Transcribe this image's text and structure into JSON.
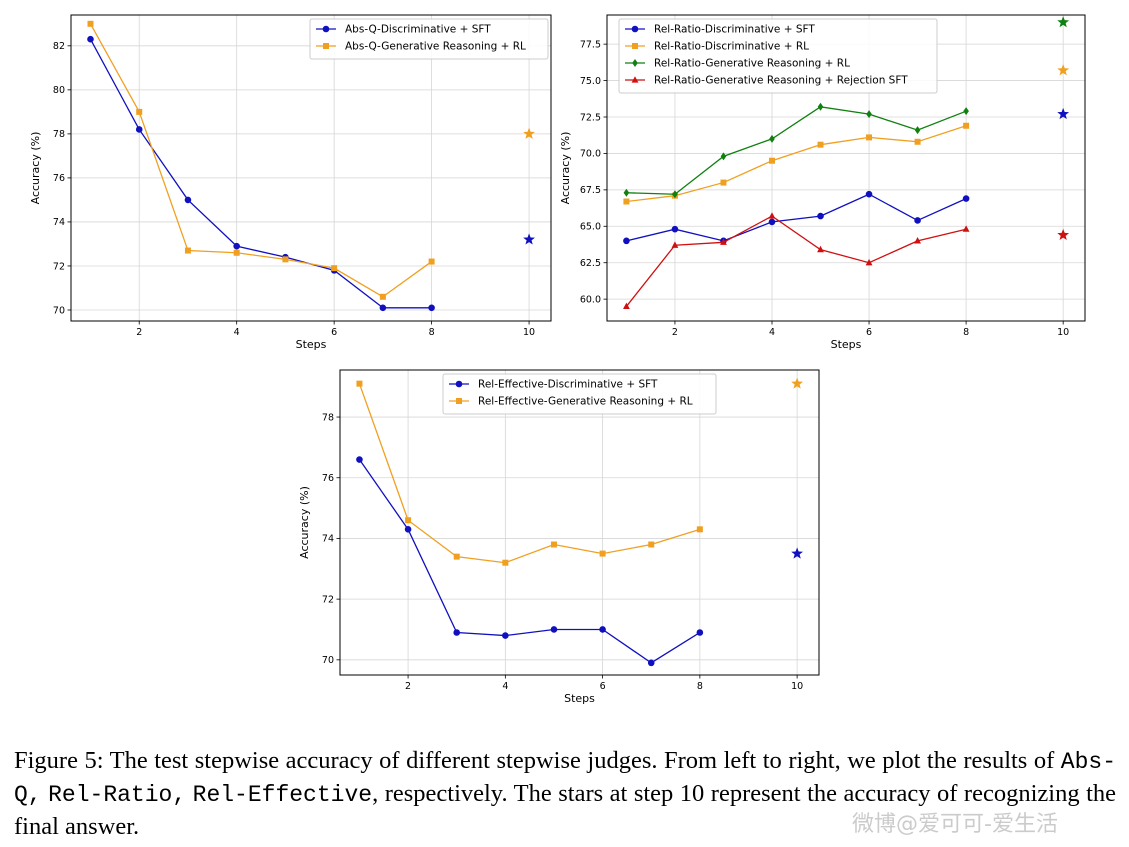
{
  "chart_data": [
    {
      "type": "line",
      "xlabel": "Steps",
      "ylabel": "Accuracy (%)",
      "xlim": [
        0.6,
        10.45
      ],
      "ylim": [
        69.5,
        83.4
      ],
      "xticks": [
        2,
        4,
        6,
        8,
        10
      ],
      "yticks": [
        70,
        72,
        74,
        76,
        78,
        80,
        82
      ],
      "grid": true,
      "legend": "top-right",
      "series": [
        {
          "name": "Abs-Q-Discriminative + SFT",
          "color": "#1010c0",
          "marker": "circle",
          "x": [
            1,
            2,
            3,
            4,
            5,
            6,
            7,
            8
          ],
          "y": [
            82.3,
            78.2,
            75.0,
            72.9,
            72.4,
            71.8,
            70.1,
            70.1
          ]
        },
        {
          "name": "Abs-Q-Generative Reasoning + RL",
          "color": "#f0a020",
          "marker": "square",
          "x": [
            1,
            2,
            3,
            4,
            5,
            6,
            7,
            8
          ],
          "y": [
            83.0,
            79.0,
            72.7,
            72.6,
            72.3,
            71.9,
            70.6,
            72.2
          ]
        }
      ],
      "stars": [
        {
          "x": 10,
          "y": 78.0,
          "color": "#f0a020"
        },
        {
          "x": 10,
          "y": 73.2,
          "color": "#1010c0"
        }
      ]
    },
    {
      "type": "line",
      "xlabel": "Steps",
      "ylabel": "Accuracy (%)",
      "xlim": [
        0.6,
        10.45
      ],
      "ylim": [
        58.5,
        79.5
      ],
      "xticks": [
        2,
        4,
        6,
        8,
        10
      ],
      "yticks": [
        60.0,
        62.5,
        65.0,
        67.5,
        70.0,
        72.5,
        75.0,
        77.5
      ],
      "ytick_labels": [
        "60.0",
        "62.5",
        "65.0",
        "67.5",
        "70.0",
        "72.5",
        "75.0",
        "77.5"
      ],
      "grid": true,
      "legend": "top-left",
      "series": [
        {
          "name": "Rel-Ratio-Discriminative + SFT",
          "color": "#1010c0",
          "marker": "circle",
          "x": [
            1,
            2,
            3,
            4,
            5,
            6,
            7,
            8
          ],
          "y": [
            64.0,
            64.8,
            64.0,
            65.3,
            65.7,
            67.2,
            65.4,
            66.9
          ]
        },
        {
          "name": "Rel-Ratio-Discriminative + RL",
          "color": "#f0a020",
          "marker": "square",
          "x": [
            1,
            2,
            3,
            4,
            5,
            6,
            7,
            8
          ],
          "y": [
            66.7,
            67.1,
            68.0,
            69.5,
            70.6,
            71.1,
            70.8,
            71.9
          ]
        },
        {
          "name": "Rel-Ratio-Generative Reasoning + RL",
          "color": "#108010",
          "marker": "diamond",
          "x": [
            1,
            2,
            3,
            4,
            5,
            6,
            7,
            8
          ],
          "y": [
            67.3,
            67.2,
            69.8,
            71.0,
            73.2,
            72.7,
            71.6,
            72.9
          ]
        },
        {
          "name": "Rel-Ratio-Generative Reasoning + Rejection SFT",
          "color": "#d01010",
          "marker": "triangle",
          "x": [
            1,
            2,
            3,
            4,
            5,
            6,
            7,
            8
          ],
          "y": [
            59.5,
            63.7,
            63.9,
            65.7,
            63.4,
            62.5,
            64.0,
            64.8
          ]
        }
      ],
      "stars": [
        {
          "x": 10,
          "y": 79.0,
          "color": "#108010"
        },
        {
          "x": 10,
          "y": 75.7,
          "color": "#f0a020"
        },
        {
          "x": 10,
          "y": 72.7,
          "color": "#1010c0"
        },
        {
          "x": 10,
          "y": 64.4,
          "color": "#d01010"
        }
      ]
    },
    {
      "type": "line",
      "xlabel": "Steps",
      "ylabel": "Accuracy (%)",
      "xlim": [
        0.6,
        10.45
      ],
      "ylim": [
        69.5,
        79.55
      ],
      "xticks": [
        2,
        4,
        6,
        8,
        10
      ],
      "yticks": [
        70,
        72,
        74,
        76,
        78
      ],
      "grid": true,
      "legend": "top-center",
      "series": [
        {
          "name": "Rel-Effective-Discriminative + SFT",
          "color": "#1010c0",
          "marker": "circle",
          "x": [
            1,
            2,
            3,
            4,
            5,
            6,
            7,
            8
          ],
          "y": [
            76.6,
            74.3,
            70.9,
            70.8,
            71.0,
            71.0,
            69.9,
            70.9
          ]
        },
        {
          "name": "Rel-Effective-Generative Reasoning + RL",
          "color": "#f0a020",
          "marker": "square",
          "x": [
            1,
            2,
            3,
            4,
            5,
            6,
            7,
            8
          ],
          "y": [
            79.1,
            74.6,
            73.4,
            73.2,
            73.8,
            73.5,
            73.8,
            74.3
          ]
        }
      ],
      "stars": [
        {
          "x": 10,
          "y": 79.1,
          "color": "#f0a020"
        },
        {
          "x": 10,
          "y": 73.5,
          "color": "#1010c0"
        }
      ]
    }
  ],
  "caption": {
    "prefix": "Figure 5: The test stepwise accuracy of different stepwise judges. From left to right, we plot the results of",
    "method_1": "Abs-Q,",
    "method_2": "Rel-Ratio,",
    "method_3": "Rel-Effective",
    "suffix": ", respectively. The stars at step 10 represent the accuracy of recognizing the final answer."
  },
  "watermark": "微博@爱可可-爱生活"
}
